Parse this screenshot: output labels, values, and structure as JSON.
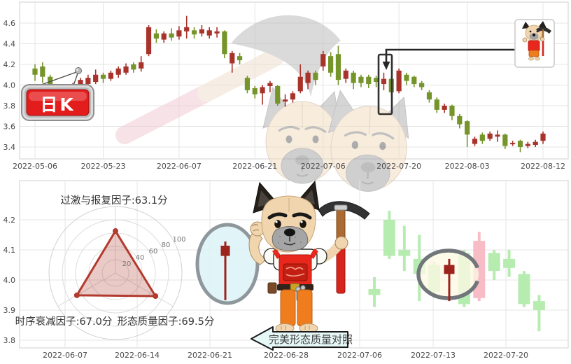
{
  "sign": {
    "text": "日K"
  },
  "banner": {
    "text": "完美形态质量对照"
  },
  "chart_data": [
    {
      "type": "candlestick",
      "name": "daily-k-line",
      "badge": "日K",
      "y_ticks": [
        "4.6",
        "4.4",
        "4.2",
        "4.0",
        "3.8",
        "3.6",
        "3.4"
      ],
      "x_ticks": [
        "2022-05-06",
        "2022-05-23",
        "2022-06-07",
        "2022-06-21",
        "2022-07-06",
        "2022-07-20",
        "2022-08-03",
        "2022-08-12"
      ],
      "x_tick_candle_indices": [
        0,
        9,
        19,
        29,
        38,
        48,
        57,
        67
      ],
      "ylim": [
        3.3,
        4.78
      ],
      "columns": [
        "open",
        "close",
        "low",
        "high"
      ],
      "colors": {
        "up": "#a8332b",
        "down": "#75952b"
      },
      "callout_candle_index": 46,
      "candles": [
        [
          4.16,
          4.1,
          4.04,
          4.2
        ],
        [
          4.18,
          4.08,
          4.02,
          4.22
        ],
        [
          4.08,
          3.98,
          3.94,
          4.1
        ],
        [
          3.98,
          3.93,
          3.88,
          4.0
        ],
        [
          3.97,
          3.92,
          3.87,
          3.99
        ],
        [
          3.93,
          4.0,
          3.89,
          4.02
        ],
        [
          3.98,
          4.05,
          3.96,
          4.07
        ],
        [
          4.01,
          4.07,
          3.99,
          4.1
        ],
        [
          4.03,
          4.1,
          4.01,
          4.15
        ],
        [
          4.1,
          4.06,
          4.02,
          4.12
        ],
        [
          4.06,
          4.12,
          4.04,
          4.14
        ],
        [
          4.1,
          4.16,
          4.07,
          4.18
        ],
        [
          4.12,
          4.18,
          4.1,
          4.21
        ],
        [
          4.2,
          4.15,
          4.12,
          4.22
        ],
        [
          4.16,
          4.22,
          4.13,
          4.28
        ],
        [
          4.3,
          4.56,
          4.28,
          4.58
        ],
        [
          4.5,
          4.45,
          4.41,
          4.54
        ],
        [
          4.44,
          4.5,
          4.41,
          4.52
        ],
        [
          4.5,
          4.46,
          4.43,
          4.55
        ],
        [
          4.47,
          4.53,
          4.44,
          4.57
        ],
        [
          4.52,
          4.56,
          4.45,
          4.67
        ],
        [
          4.53,
          4.49,
          4.45,
          4.56
        ],
        [
          4.5,
          4.54,
          4.47,
          4.58
        ],
        [
          4.48,
          4.53,
          4.45,
          4.56
        ],
        [
          4.5,
          4.52,
          4.46,
          4.56
        ],
        [
          4.52,
          4.3,
          4.26,
          4.53
        ],
        [
          4.21,
          4.31,
          4.12,
          4.33
        ],
        [
          4.28,
          4.24,
          4.2,
          4.31
        ],
        [
          4.07,
          3.95,
          3.92,
          4.09
        ],
        [
          3.97,
          3.91,
          3.87,
          3.99
        ],
        [
          3.92,
          3.98,
          3.81,
          4.0
        ],
        [
          3.99,
          4.02,
          3.93,
          4.04
        ],
        [
          3.99,
          3.82,
          3.8,
          4.0
        ],
        [
          3.84,
          3.86,
          3.79,
          3.91
        ],
        [
          3.86,
          3.92,
          3.83,
          3.94
        ],
        [
          3.94,
          4.08,
          3.92,
          4.2
        ],
        [
          4.02,
          4.12,
          3.96,
          4.14
        ],
        [
          4.12,
          4.05,
          4.0,
          4.14
        ],
        [
          4.18,
          4.3,
          4.14,
          4.33
        ],
        [
          4.28,
          4.12,
          4.08,
          4.32
        ],
        [
          4.3,
          4.05,
          4.0,
          4.38
        ],
        [
          4.06,
          4.14,
          4.02,
          4.16
        ],
        [
          4.12,
          4.02,
          3.96,
          4.14
        ],
        [
          4.08,
          4.02,
          3.98,
          4.1
        ],
        [
          4.08,
          4.01,
          3.97,
          4.1
        ],
        [
          4.07,
          4.03,
          3.98,
          4.09
        ],
        [
          4.01,
          4.06,
          3.95,
          4.12
        ],
        [
          4.06,
          3.93,
          3.9,
          4.08
        ],
        [
          3.94,
          4.14,
          3.92,
          4.16
        ],
        [
          4.1,
          4.04,
          4.0,
          4.12
        ],
        [
          4.08,
          4.01,
          3.98,
          4.09
        ],
        [
          4.02,
          3.98,
          3.95,
          4.04
        ],
        [
          3.93,
          3.86,
          3.83,
          3.95
        ],
        [
          3.86,
          3.76,
          3.73,
          3.88
        ],
        [
          3.76,
          3.8,
          3.73,
          3.82
        ],
        [
          3.8,
          3.7,
          3.66,
          3.81
        ],
        [
          3.7,
          3.62,
          3.58,
          3.72
        ],
        [
          3.65,
          3.52,
          3.4,
          3.66
        ],
        [
          3.43,
          3.48,
          3.41,
          3.5
        ],
        [
          3.52,
          3.46,
          3.43,
          3.54
        ],
        [
          3.48,
          3.53,
          3.46,
          3.55
        ],
        [
          3.5,
          3.52,
          3.45,
          3.56
        ],
        [
          3.52,
          3.41,
          3.38,
          3.53
        ],
        [
          3.43,
          3.44,
          3.41,
          3.46
        ],
        [
          3.46,
          3.4,
          3.35,
          3.47
        ],
        [
          3.41,
          3.43,
          3.39,
          3.45
        ],
        [
          3.42,
          3.45,
          3.4,
          3.47
        ],
        [
          3.46,
          3.53,
          3.43,
          3.55
        ]
      ]
    },
    {
      "type": "candlestick",
      "name": "pattern-quality-compare",
      "y_ticks": [
        "4.2",
        "4.1",
        "4.0",
        "3.9",
        "3.8"
      ],
      "x_ticks": [
        "2022-06-07",
        "2022-06-14",
        "2022-06-21",
        "2022-06-28",
        "2022-07-06",
        "2022-07-13",
        "2022-07-20"
      ],
      "ylim": [
        3.77,
        4.33
      ],
      "columns": [
        "open",
        "close",
        "low",
        "high"
      ],
      "colors": {
        "faded-down": "#b7ecb1",
        "faded-up": "#f8bcc7",
        "highlight-up": "#9c241c"
      },
      "reference_pattern": {
        "ohlc": [
          4.08,
          4.114,
          3.933,
          4.128
        ]
      },
      "candles": [
        {
          "slot": 0,
          "ohlc": [
            3.97,
            3.95,
            3.91,
            4.01
          ],
          "style": "faded-down"
        },
        {
          "slot": 1,
          "ohlc": [
            4.2,
            4.08,
            4.07,
            4.23
          ],
          "style": "faded-down"
        },
        {
          "slot": 2,
          "ohlc": [
            4.1,
            4.08,
            4.03,
            4.18
          ],
          "style": "faded-down"
        },
        {
          "slot": 3,
          "ohlc": [
            4.07,
            4.02,
            3.93,
            4.15
          ],
          "style": "faded-down"
        },
        {
          "slot": 4,
          "ohlc": [
            4.05,
            3.96,
            3.94,
            4.06
          ],
          "style": "faded-down"
        },
        {
          "slot": 5,
          "ohlc": [
            4.02,
            4.05,
            3.93,
            4.07
          ],
          "style": "highlight-up"
        },
        {
          "slot": 6,
          "ohlc": [
            4.09,
            3.92,
            3.91,
            4.1
          ],
          "style": "faded-down"
        },
        {
          "slot": 7,
          "ohlc": [
            3.94,
            4.13,
            3.93,
            4.16
          ],
          "style": "faded-up"
        },
        {
          "slot": 8,
          "ohlc": [
            4.09,
            4.03,
            4.0,
            4.1
          ],
          "style": "faded-down"
        },
        {
          "slot": 9,
          "ohlc": [
            4.07,
            4.04,
            4.01,
            4.1
          ],
          "style": "faded-down"
        },
        {
          "slot": 10,
          "ohlc": [
            4.02,
            3.92,
            3.91,
            4.03
          ],
          "style": "faded-down"
        },
        {
          "slot": 11,
          "ohlc": [
            3.93,
            3.9,
            3.83,
            3.95
          ],
          "style": "faded-down"
        }
      ]
    },
    {
      "type": "radar",
      "name": "factor-radar",
      "max": 100,
      "ring_labels": [
        "20",
        "40",
        "60",
        "80",
        "100"
      ],
      "color": "#b23a2e",
      "factors": [
        {
          "label": "过激与报复因子:63.1分",
          "value": 63.1
        },
        {
          "label": "时序衰减因子:67.0分",
          "value": 67.0
        },
        {
          "label": "形态质量因子:69.5分",
          "value": 69.5
        }
      ]
    }
  ]
}
